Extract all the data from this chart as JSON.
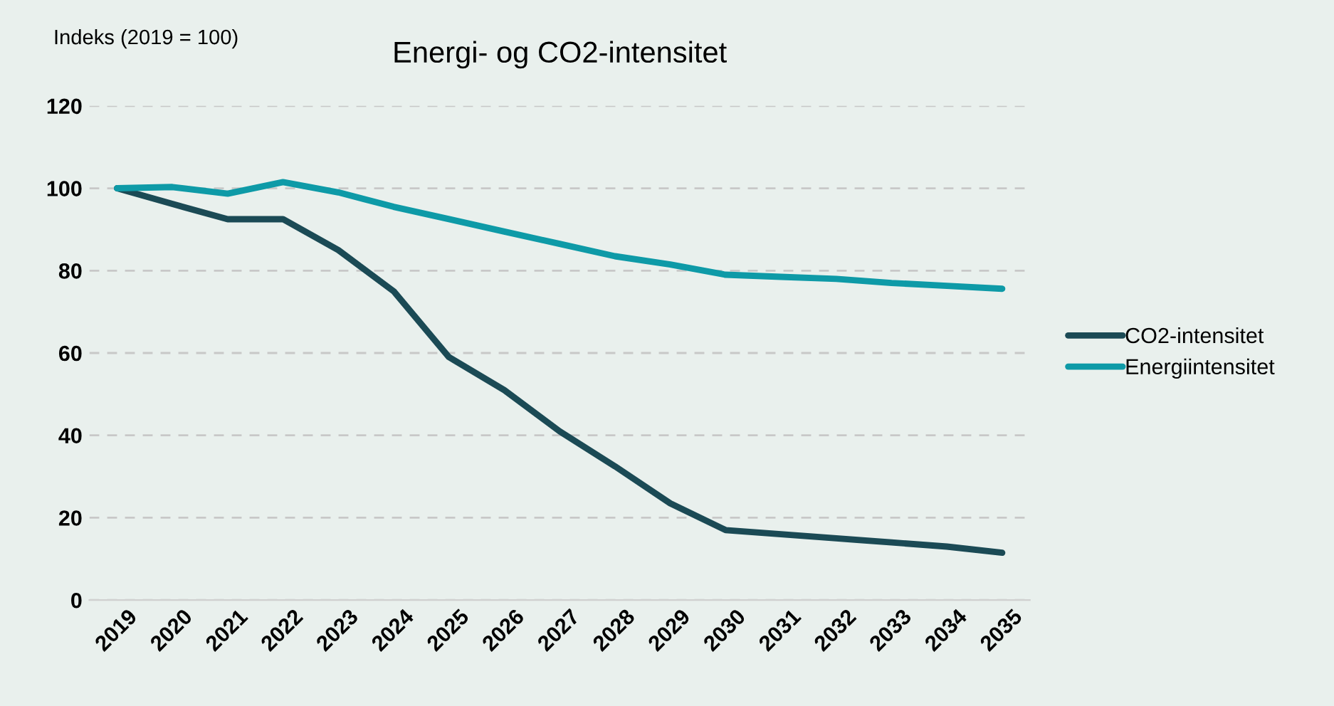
{
  "chart_data": {
    "type": "line",
    "title": "Energi- og CO2-intensitet",
    "ylabel": "Indeks (2019 = 100)",
    "categories": [
      "2019",
      "2020",
      "2021",
      "2022",
      "2023",
      "2024",
      "2025",
      "2026",
      "2027",
      "2028",
      "2029",
      "2030",
      "2031",
      "2032",
      "2033",
      "2034",
      "2035"
    ],
    "series": [
      {
        "name": "CO2-intensitet",
        "color": "#1b4a55",
        "values": [
          100,
          96.2,
          92.5,
          92.5,
          85,
          75,
          59,
          51,
          41,
          32.5,
          23.5,
          17,
          16,
          15,
          14,
          13,
          11.5
        ]
      },
      {
        "name": "Energiintensitet",
        "color": "#0e9aa7",
        "values": [
          100,
          100.3,
          98.7,
          101.5,
          99,
          95.5,
          92.5,
          89.5,
          86.5,
          83.5,
          81.5,
          79,
          78.5,
          78,
          77,
          76.3,
          75.6
        ]
      }
    ],
    "ylim": [
      0,
      120
    ],
    "yticks": [
      0,
      20,
      40,
      60,
      80,
      100,
      120
    ],
    "grid": "y",
    "legend": "right",
    "marker": "none",
    "line_style": "solid"
  }
}
